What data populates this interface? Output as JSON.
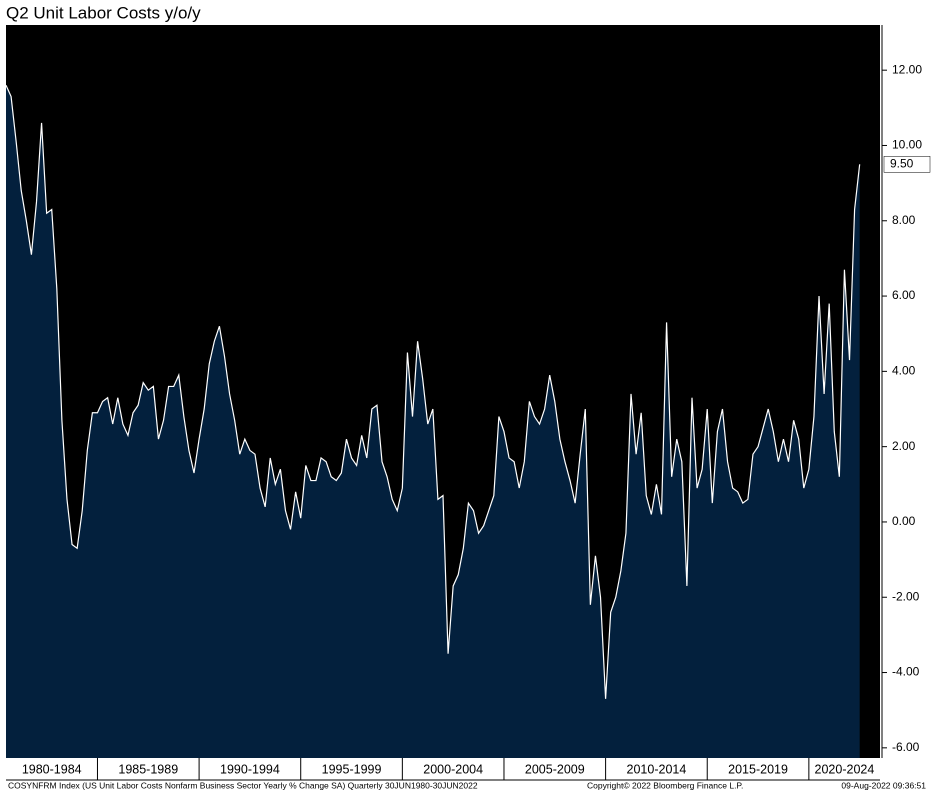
{
  "chart_data": {
    "type": "area",
    "title": "Q2 Unit Labor Costs y/o/y",
    "series": [
      {
        "name": "COSYNFRM Index",
        "color": "#ffffff",
        "fill": "#03203d",
        "values": [
          11.6,
          11.3,
          10.1,
          8.8,
          8.0,
          7.1,
          8.5,
          10.6,
          8.2,
          8.3,
          6.2,
          2.7,
          0.6,
          -0.6,
          -0.7,
          0.3,
          1.9,
          2.9,
          2.9,
          3.2,
          3.3,
          2.6,
          3.3,
          2.6,
          2.3,
          2.9,
          3.1,
          3.7,
          3.5,
          3.6,
          2.2,
          2.7,
          3.6,
          3.6,
          3.9,
          2.8,
          1.9,
          1.3,
          2.2,
          3.0,
          4.2,
          4.8,
          5.2,
          4.4,
          3.4,
          2.7,
          1.8,
          2.2,
          1.9,
          1.8,
          0.9,
          0.4,
          1.7,
          1.0,
          1.4,
          0.3,
          -0.2,
          0.8,
          0.1,
          1.5,
          1.1,
          1.1,
          1.7,
          1.6,
          1.2,
          1.1,
          1.3,
          2.2,
          1.7,
          1.5,
          2.3,
          1.7,
          3.0,
          3.1,
          1.6,
          1.2,
          0.6,
          0.3,
          0.9,
          4.5,
          2.8,
          4.8,
          3.8,
          2.6,
          3.0,
          0.6,
          0.7,
          -3.5,
          -1.7,
          -1.4,
          -0.7,
          0.5,
          0.3,
          -0.3,
          -0.1,
          0.3,
          0.7,
          2.8,
          2.4,
          1.7,
          1.6,
          0.9,
          1.6,
          3.2,
          2.8,
          2.6,
          3.0,
          3.9,
          3.2,
          2.2,
          1.6,
          1.1,
          0.5,
          1.8,
          3.0,
          -2.2,
          -0.9,
          -2.0,
          -4.7,
          -2.4,
          -2.0,
          -1.3,
          -0.3,
          3.4,
          1.8,
          2.9,
          0.7,
          0.2,
          1.0,
          0.2,
          5.3,
          1.2,
          2.2,
          1.6,
          -1.7,
          3.3,
          0.9,
          1.4,
          3.0,
          0.5,
          2.4,
          3.0,
          1.6,
          0.9,
          0.8,
          0.5,
          0.6,
          1.8,
          2.0,
          2.5,
          3.0,
          2.4,
          1.6,
          2.2,
          1.6,
          2.7,
          2.2,
          0.9,
          1.4,
          2.8,
          6.0,
          3.4,
          5.8,
          2.4,
          1.2,
          6.7,
          4.3,
          8.3,
          9.5
        ],
        "value_labels": [
          null,
          null,
          null,
          null,
          null,
          null,
          null,
          null,
          null,
          null,
          null,
          null,
          null,
          null,
          null,
          null,
          null,
          null,
          null,
          null,
          null,
          null,
          null,
          null,
          null,
          null,
          null,
          null,
          null,
          null,
          null,
          null,
          null,
          null,
          null,
          null,
          null,
          null,
          null,
          null,
          null,
          null,
          null,
          null,
          null,
          null,
          null,
          null,
          null,
          null,
          null,
          null,
          null,
          null,
          null,
          null,
          null,
          null,
          null,
          null,
          null,
          null,
          null,
          null,
          null,
          null,
          null,
          null,
          null,
          null,
          null,
          null,
          null,
          null,
          null,
          null,
          null,
          null,
          null,
          null,
          null,
          null,
          null,
          null,
          null,
          null,
          null,
          null,
          null,
          null,
          null,
          null,
          null,
          null,
          null,
          null,
          null,
          null,
          null,
          null,
          null,
          null,
          null,
          null,
          null,
          null,
          null,
          null,
          null,
          null,
          null,
          null,
          null,
          null,
          null,
          null,
          null,
          null,
          null,
          null,
          null,
          null,
          null,
          null,
          null,
          null,
          null,
          null,
          null,
          null,
          null,
          null,
          null,
          null,
          null,
          null,
          null,
          null,
          null,
          null,
          null,
          null,
          null,
          null,
          null,
          null,
          null,
          null,
          null,
          null,
          null,
          null,
          null,
          null,
          null,
          null,
          null,
          null,
          null,
          null,
          null,
          null,
          null,
          null,
          null,
          null,
          null,
          null,
          "9.50"
        ]
      }
    ],
    "xlim": [
      1980.5,
      2023.5
    ],
    "xticks": [
      {
        "value": 1980,
        "label": "1980-1984"
      },
      {
        "value": 1985,
        "label": "1985-1989"
      },
      {
        "value": 1990,
        "label": "1990-1994"
      },
      {
        "value": 1995,
        "label": "1995-1999"
      },
      {
        "value": 2000,
        "label": "2000-2004"
      },
      {
        "value": 2005,
        "label": "2005-2009"
      },
      {
        "value": 2010,
        "label": "2010-2014"
      },
      {
        "value": 2015,
        "label": "2015-2019"
      },
      {
        "value": 2020,
        "label": "2020-2024"
      }
    ],
    "ylim": [
      -6.27,
      13.2
    ],
    "yticks": [
      {
        "value": 12,
        "label": "12.00"
      },
      {
        "value": 10,
        "label": "10.00"
      },
      {
        "value": 8,
        "label": "8.00"
      },
      {
        "value": 6,
        "label": "6.00"
      },
      {
        "value": 4,
        "label": "4.00"
      },
      {
        "value": 2,
        "label": "2.00"
      },
      {
        "value": 0,
        "label": "0.00"
      },
      {
        "value": -2,
        "label": "-2.00"
      },
      {
        "value": -4,
        "label": "-4.00"
      },
      {
        "value": -6,
        "label": "-6.00"
      }
    ],
    "footer": {
      "source": "COSYNFRM Index (US Unit Labor Costs Nonfarm Business Sector Yearly % Change SA)  Quarterly 30JUN1980-30JUN2022",
      "copyright": "Copyright© 2022 Bloomberg Finance L.P.",
      "timestamp": "09-Aug-2022 09:36:51"
    }
  }
}
